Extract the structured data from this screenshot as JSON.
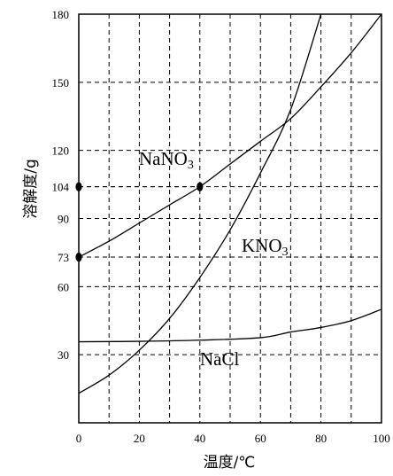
{
  "chart_data": {
    "type": "line",
    "xlabel": "温度/℃",
    "ylabel": "溶解度/g",
    "xlim": [
      0,
      100
    ],
    "ylim": [
      0,
      180
    ],
    "x_ticks": [
      "0",
      "20",
      "40",
      "60",
      "80",
      "100"
    ],
    "y_ticks": [
      "30",
      "60",
      "73",
      "90",
      "104",
      "120",
      "150",
      "180"
    ],
    "series": [
      {
        "name": "NaNO3",
        "label_main": "NaNO",
        "label_sub": "3",
        "x": [
          0,
          10,
          20,
          30,
          40,
          50,
          60,
          70,
          80,
          90,
          100
        ],
        "y": [
          73,
          80,
          88,
          96,
          104,
          114,
          124,
          134,
          148,
          163,
          180
        ]
      },
      {
        "name": "KNO3",
        "label_main": "KNO",
        "label_sub": "3",
        "x": [
          0,
          10,
          20,
          30,
          40,
          50,
          60,
          70,
          80
        ],
        "y": [
          13,
          21,
          32,
          46,
          64,
          85,
          110,
          138,
          180
        ]
      },
      {
        "name": "NaCl",
        "label_main": "NaCl",
        "label_sub": "",
        "x": [
          0,
          20,
          40,
          60,
          70,
          80,
          90,
          100
        ],
        "y": [
          35.7,
          35.9,
          36.4,
          37.5,
          40,
          42,
          45,
          50
        ]
      }
    ],
    "highlighted_points": [
      {
        "x": 0,
        "y": 73
      },
      {
        "x": 0,
        "y": 104
      },
      {
        "x": 40,
        "y": 104
      }
    ],
    "grid": true
  }
}
